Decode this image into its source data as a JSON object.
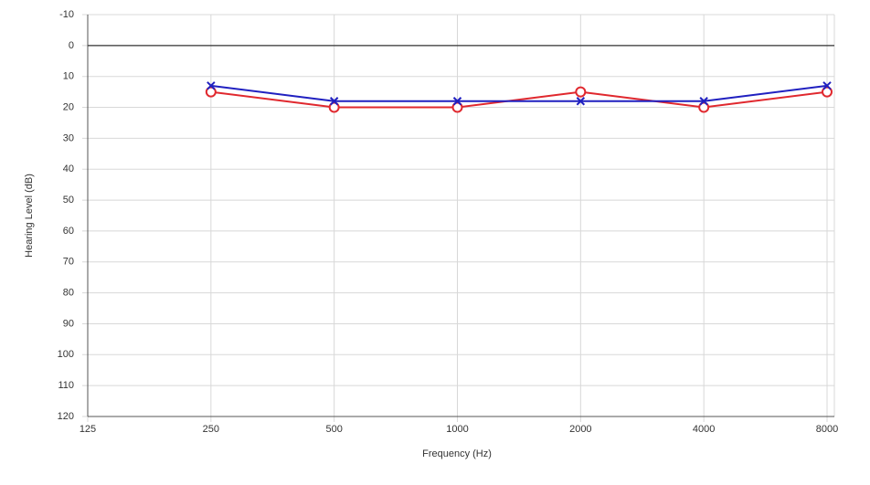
{
  "chart_data": {
    "type": "line",
    "x_label": "Frequency (Hz)",
    "y_label": "Hearing Level (dB)",
    "x": [
      250,
      500,
      1000,
      2000,
      4000,
      8000
    ],
    "series": [
      {
        "color": "#e0282e",
        "marker": "circle",
        "values": [
          15,
          20,
          20,
          15,
          20,
          15
        ]
      },
      {
        "color": "#2020c0",
        "marker": "cross",
        "values": [
          13,
          18,
          18,
          18,
          18,
          13
        ]
      }
    ],
    "x_log": true,
    "xlim": [
      125,
      8000
    ],
    "xticks": [
      125,
      250,
      500,
      1000,
      2000,
      4000,
      8000
    ],
    "y_reversed": true,
    "ylim": [
      -10,
      120
    ],
    "yticks": [
      -10,
      0,
      10,
      20,
      30,
      40,
      50,
      60,
      70,
      80,
      90,
      100,
      110,
      120
    ],
    "reference_line": 0,
    "grid": true
  }
}
